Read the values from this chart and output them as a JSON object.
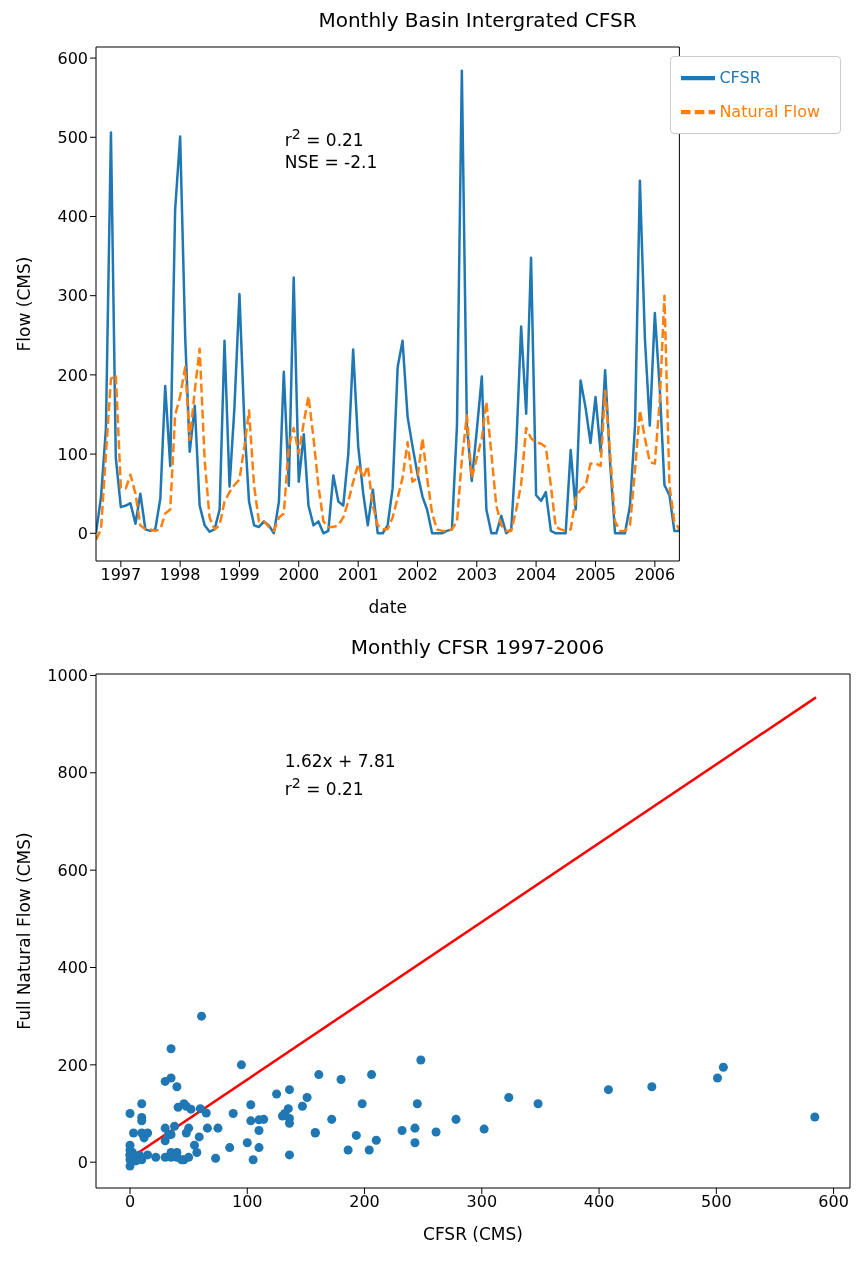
{
  "chart_data": [
    {
      "type": "line",
      "title": "Monthly Basin Intergrated CFSR",
      "xlabel": "date",
      "ylabel": "Flow (CMS)",
      "x": [
        "1996-08",
        "1996-09",
        "1996-10",
        "1996-11",
        "1996-12",
        "1997-01",
        "1997-02",
        "1997-03",
        "1997-04",
        "1997-05",
        "1997-06",
        "1997-07",
        "1997-08",
        "1997-09",
        "1997-10",
        "1997-11",
        "1997-12",
        "1998-01",
        "1998-02",
        "1998-03",
        "1998-04",
        "1998-05",
        "1998-06",
        "1998-07",
        "1998-08",
        "1998-09",
        "1998-10",
        "1998-11",
        "1998-12",
        "1999-01",
        "1999-02",
        "1999-03",
        "1999-04",
        "1999-05",
        "1999-06",
        "1999-07",
        "1999-08",
        "1999-09",
        "1999-10",
        "1999-11",
        "1999-12",
        "2000-01",
        "2000-02",
        "2000-03",
        "2000-04",
        "2000-05",
        "2000-06",
        "2000-07",
        "2000-08",
        "2000-09",
        "2000-10",
        "2000-11",
        "2000-12",
        "2001-01",
        "2001-02",
        "2001-03",
        "2001-04",
        "2001-05",
        "2001-06",
        "2001-07",
        "2001-08",
        "2001-09",
        "2001-10",
        "2001-11",
        "2001-12",
        "2002-01",
        "2002-02",
        "2002-03",
        "2002-04",
        "2002-05",
        "2002-06",
        "2002-07",
        "2002-08",
        "2002-09",
        "2002-10",
        "2002-11",
        "2002-12",
        "2003-01",
        "2003-02",
        "2003-03",
        "2003-04",
        "2003-05",
        "2003-06",
        "2003-07",
        "2003-08",
        "2003-09",
        "2003-10",
        "2003-11",
        "2003-12",
        "2004-01",
        "2004-02",
        "2004-03",
        "2004-04",
        "2004-05",
        "2004-06",
        "2004-07",
        "2004-08",
        "2004-09",
        "2004-10",
        "2004-11",
        "2004-12",
        "2005-01",
        "2005-02",
        "2005-03",
        "2005-04",
        "2005-05",
        "2005-06",
        "2005-07",
        "2005-08",
        "2005-09",
        "2005-10",
        "2005-11",
        "2005-12",
        "2006-01",
        "2006-02",
        "2006-03",
        "2006-04",
        "2006-05",
        "2006-06"
      ],
      "series": [
        {
          "name": "CFSR",
          "color": "#1f77b4",
          "line_style": "solid",
          "values": [
            0,
            46,
            132,
            506,
            95,
            33,
            35,
            38,
            12,
            50,
            5,
            3,
            5,
            44,
            186,
            85,
            408,
            501,
            248,
            103,
            161,
            35,
            10,
            2,
            5,
            30,
            243,
            59,
            158,
            302,
            135,
            40,
            10,
            8,
            15,
            10,
            0,
            40,
            204,
            60,
            323,
            65,
            125,
            35,
            10,
            15,
            0,
            3,
            73,
            40,
            35,
            100,
            232,
            110,
            50,
            10,
            55,
            0,
            0,
            10,
            57,
            210,
            243,
            147,
            110,
            75,
            46,
            30,
            0,
            0,
            0,
            3,
            5,
            136,
            584,
            136,
            66,
            130,
            198,
            30,
            0,
            0,
            22,
            0,
            5,
            110,
            261,
            151,
            348,
            48,
            41,
            52,
            3,
            0,
            0,
            0,
            105,
            30,
            193,
            158,
            114,
            172,
            103,
            206,
            88,
            0,
            0,
            0,
            35,
            136,
            445,
            245,
            136,
            278,
            180,
            61,
            48,
            3,
            3
          ]
        },
        {
          "name": "Natural Flow",
          "color": "#ff7f0e",
          "line_style": "dashed",
          "values": [
            -8,
            5,
            100,
            195,
            200,
            57,
            57,
            74,
            50,
            10,
            5,
            5,
            3,
            5,
            25,
            30,
            149,
            173,
            210,
            118,
            180,
            233,
            92,
            20,
            5,
            10,
            40,
            52,
            61,
            68,
            110,
            155,
            60,
            15,
            15,
            8,
            3,
            20,
            25,
            110,
            133,
            101,
            140,
            173,
            120,
            60,
            15,
            8,
            8,
            10,
            20,
            40,
            65,
            87,
            70,
            85,
            35,
            10,
            5,
            5,
            20,
            45,
            70,
            115,
            65,
            70,
            120,
            70,
            25,
            5,
            3,
            3,
            5,
            15,
            93,
            149,
            70,
            95,
            120,
            166,
            100,
            35,
            10,
            3,
            3,
            30,
            62,
            133,
            120,
            115,
            113,
            109,
            60,
            8,
            5,
            3,
            5,
            44,
            55,
            60,
            88,
            88,
            85,
            180,
            100,
            15,
            3,
            3,
            10,
            80,
            155,
            120,
            90,
            88,
            170,
            300,
            60,
            15,
            5
          ]
        }
      ],
      "xlim": [
        "1996-08",
        "2006-06"
      ],
      "xticks": [
        "1997",
        "1998",
        "1999",
        "2000",
        "2001",
        "2002",
        "2003",
        "2004",
        "2005",
        "2006"
      ],
      "ylim": [
        -35,
        614
      ],
      "yticks": [
        0,
        100,
        200,
        300,
        400,
        500,
        600
      ],
      "marker": "none",
      "legend": "top right",
      "grid": false,
      "annotations": [
        "r$^{2}$ = 0.21",
        "NSE = -2.1"
      ]
    },
    {
      "type": "scatter",
      "title": "Monthly CFSR 1997-2006",
      "xlabel": "CFSR (CMS)",
      "ylabel": "Full Natural Flow (CMS)",
      "series": [
        {
          "color": "#1f77b4",
          "marker": "circle",
          "x": [
            0,
            46,
            132,
            506,
            95,
            33,
            35,
            38,
            12,
            50,
            5,
            44,
            186,
            85,
            408,
            501,
            248,
            103,
            161,
            35,
            10,
            2,
            30,
            243,
            59,
            158,
            302,
            135,
            40,
            10,
            8,
            15,
            40,
            204,
            60,
            323,
            65,
            125,
            35,
            10,
            15,
            0,
            73,
            40,
            35,
            100,
            232,
            110,
            50,
            10,
            55,
            0,
            10,
            57,
            210,
            243,
            147,
            110,
            75,
            46,
            30,
            0,
            136,
            584,
            136,
            66,
            130,
            198,
            30,
            0,
            0,
            22,
            5,
            110,
            261,
            151,
            348,
            48,
            41,
            52,
            3,
            105,
            30,
            193,
            158,
            114,
            172,
            103,
            206,
            88,
            0,
            35,
            136,
            445,
            245,
            136,
            278,
            180,
            61,
            48
          ],
          "values": [
            -8,
            5,
            100,
            195,
            200,
            57,
            57,
            74,
            50,
            10,
            3,
            5,
            25,
            30,
            149,
            173,
            210,
            118,
            180,
            233,
            92,
            20,
            10,
            40,
            52,
            61,
            68,
            110,
            155,
            60,
            15,
            15,
            20,
            25,
            110,
            133,
            101,
            140,
            173,
            120,
            60,
            15,
            8,
            10,
            20,
            40,
            65,
            87,
            70,
            85,
            35,
            5,
            5,
            20,
            45,
            70,
            115,
            65,
            70,
            120,
            70,
            25,
            15,
            93,
            149,
            70,
            95,
            120,
            166,
            100,
            35,
            10,
            3,
            30,
            62,
            133,
            120,
            115,
            113,
            109,
            60,
            5,
            44,
            55,
            60,
            88,
            88,
            85,
            180,
            100,
            15,
            10,
            80,
            155,
            120,
            90,
            88,
            170,
            300,
            60
          ]
        },
        {
          "type": "line",
          "color": "#ff0000",
          "marker": "none",
          "line_style": "solid",
          "x": [
            0,
            585
          ],
          "values": [
            8,
            955
          ]
        }
      ],
      "xlim": [
        -29,
        614
      ],
      "xticks": [
        0,
        100,
        200,
        300,
        400,
        500,
        600
      ],
      "ylim": [
        -53,
        1003
      ],
      "yticks": [
        0,
        200,
        400,
        600,
        800,
        1000
      ],
      "legend": false,
      "grid": false,
      "annotations": [
        "1.62x + 7.81",
        "r$^{2}$ = 0.21"
      ]
    }
  ]
}
